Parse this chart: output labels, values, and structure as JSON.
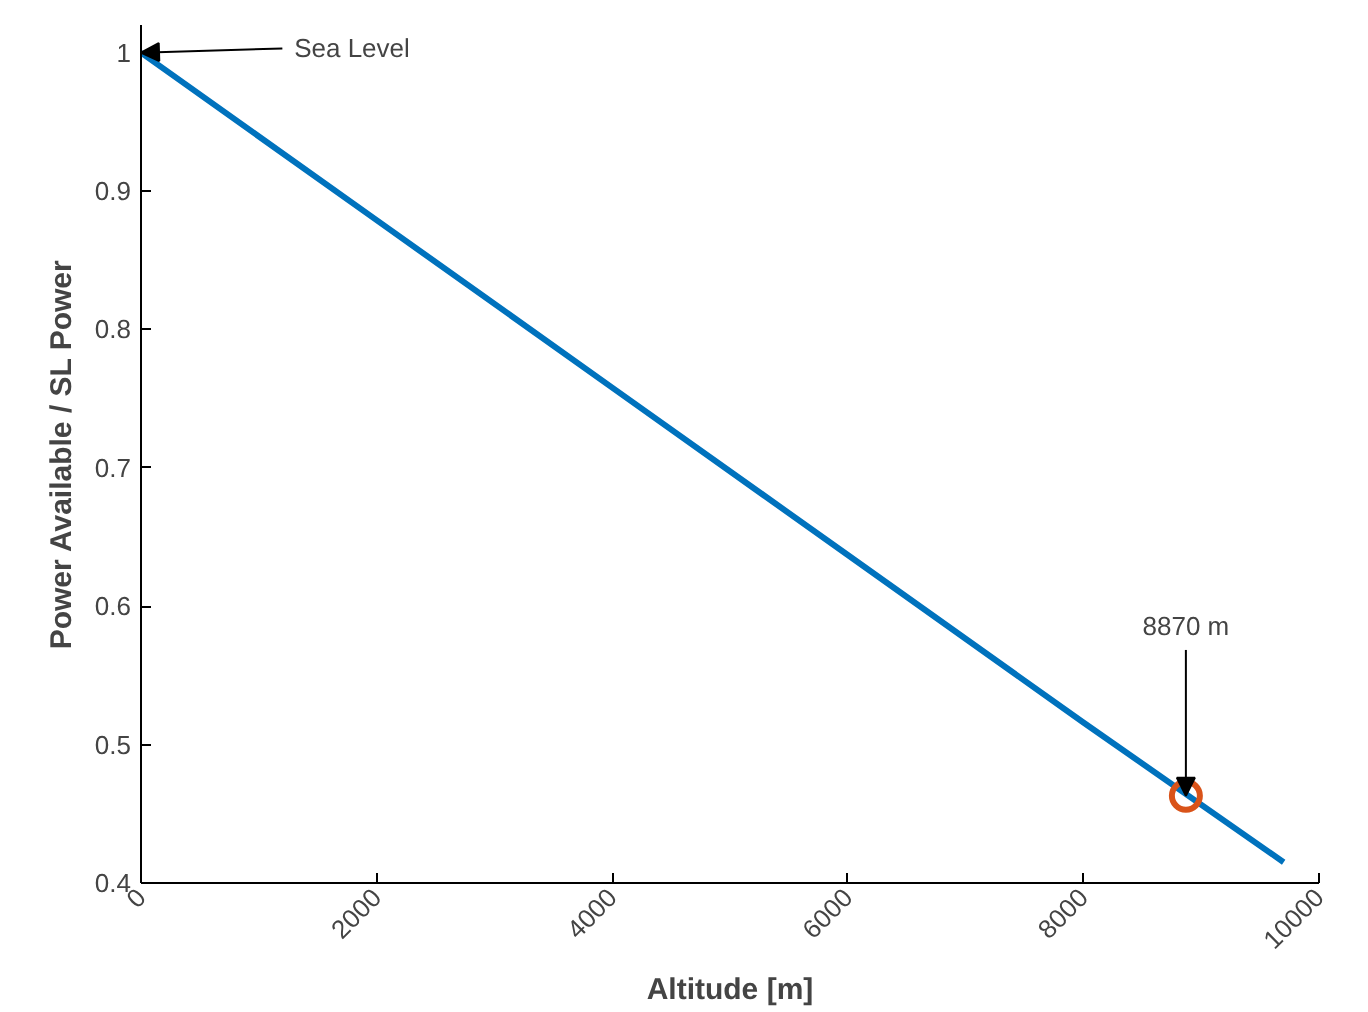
{
  "chart_data": {
    "type": "line",
    "xlabel": "Altitude [m]",
    "ylabel": "Power Available / SL Power",
    "series": [
      {
        "color": "#0072bd",
        "x": [
          0,
          2000,
          4000,
          6000,
          8000,
          9700
        ],
        "values": [
          1,
          0.879,
          0.758,
          0.637,
          0.516,
          0.415
        ]
      },
      {
        "type": "scatter",
        "marker": "circle",
        "color": "#d95319",
        "x": [
          8870
        ],
        "values": [
          0.463
        ]
      }
    ],
    "annotations": [
      {
        "text": "Sea Level",
        "x": 0,
        "y": 1
      },
      {
        "text": "8870 m",
        "x": 8870,
        "y": 0.463
      }
    ],
    "xlim": [
      0,
      10000
    ],
    "xticks": [
      0,
      2000,
      4000,
      6000,
      8000,
      10000
    ],
    "ylim": [
      0.4,
      1.02
    ],
    "yticks": [
      0.4,
      0.5,
      0.6,
      0.7,
      0.8,
      0.9,
      1
    ],
    "grid": false
  }
}
